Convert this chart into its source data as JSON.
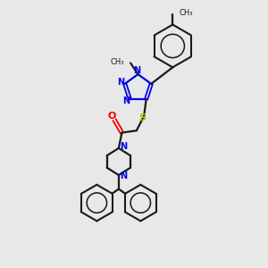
{
  "background_color": "#e8e8e8",
  "figure_size": [
    3.0,
    3.0
  ],
  "dpi": 100,
  "bond_color": "#1a1a1a",
  "nitrogen_color": "#0000ee",
  "oxygen_color": "#ee0000",
  "sulfur_color": "#bbbb00",
  "xlim": [
    0,
    10
  ],
  "ylim": [
    0,
    10
  ]
}
